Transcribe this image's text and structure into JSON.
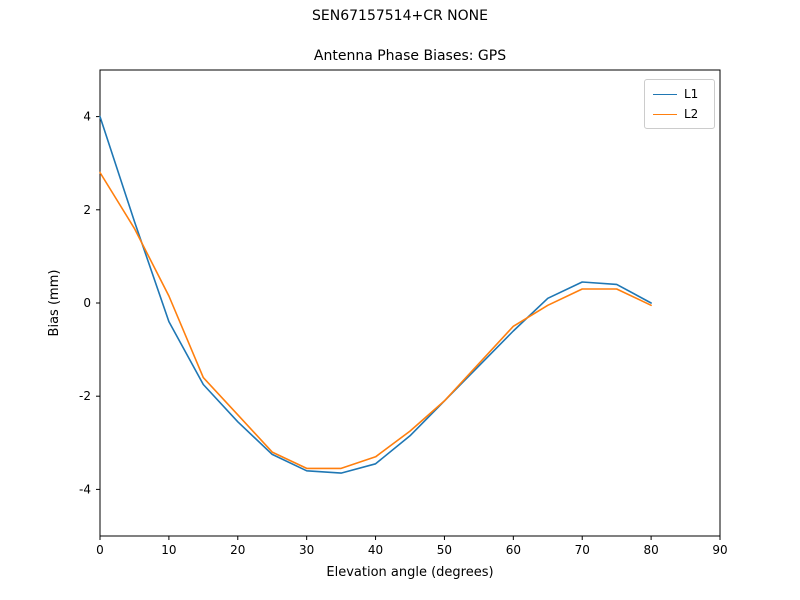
{
  "chart_data": {
    "type": "line",
    "suptitle": "SEN67157514+CR  NONE",
    "title": "Antenna Phase Biases: GPS",
    "xlabel": "Elevation angle (degrees)",
    "ylabel": "Bias (mm)",
    "xlim": [
      0,
      90
    ],
    "ylim": [
      -5,
      5
    ],
    "xticks": [
      0,
      10,
      20,
      30,
      40,
      50,
      60,
      70,
      80,
      90
    ],
    "yticks": [
      -4,
      -2,
      0,
      2,
      4
    ],
    "grid": false,
    "legend_position": "upper right",
    "x": [
      0,
      5,
      10,
      15,
      20,
      25,
      30,
      35,
      40,
      45,
      50,
      55,
      60,
      65,
      70,
      75,
      80
    ],
    "series": [
      {
        "name": "L1",
        "color": "#1f77b4",
        "values": [
          4.0,
          1.75,
          -0.4,
          -1.75,
          -2.55,
          -3.25,
          -3.6,
          -3.65,
          -3.45,
          -2.85,
          -2.1,
          -1.35,
          -0.6,
          0.1,
          0.45,
          0.4,
          0.0
        ]
      },
      {
        "name": "L2",
        "color": "#ff7f0e",
        "values": [
          2.8,
          1.6,
          0.15,
          -1.6,
          -2.4,
          -3.2,
          -3.55,
          -3.55,
          -3.3,
          -2.75,
          -2.1,
          -1.3,
          -0.5,
          -0.05,
          0.3,
          0.3,
          -0.05
        ]
      }
    ]
  }
}
